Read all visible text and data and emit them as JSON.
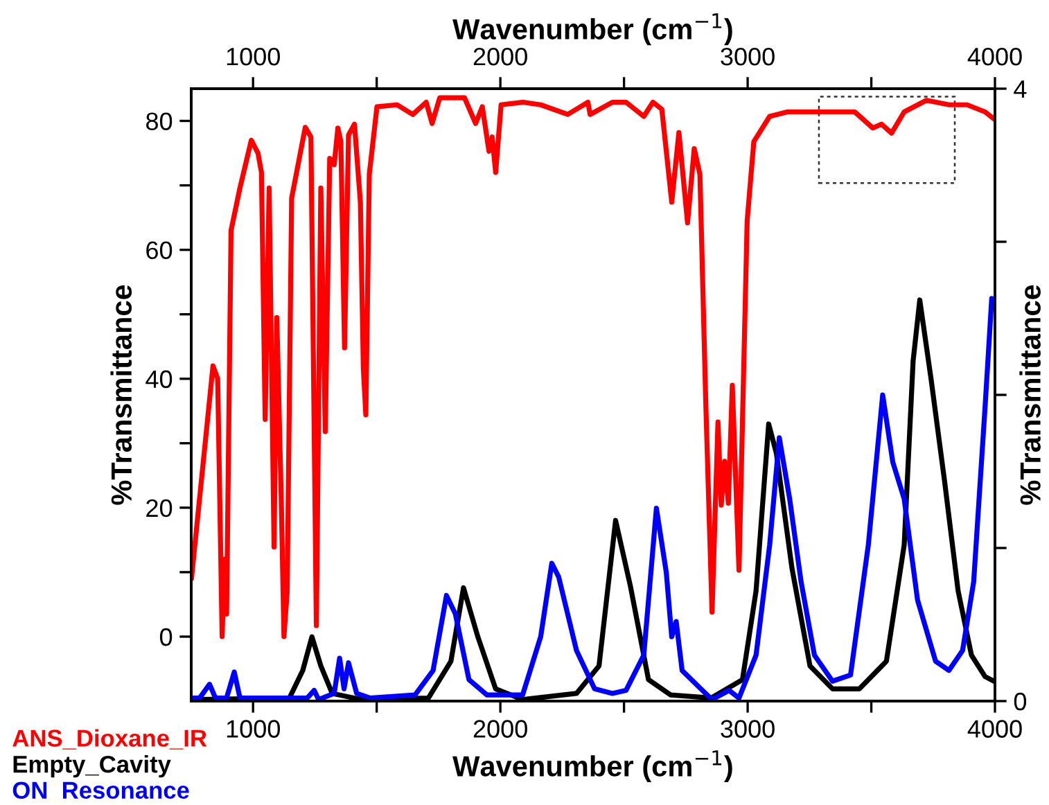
{
  "chart_data": {
    "type": "line",
    "xlabel": "Wavenumber (cm$^{−1}$)",
    "x2label": "Wavenumber (cm$^{−1}$)",
    "ylabel": "%Transmittance",
    "y2label": "%Transmittance",
    "xlim": [
      750,
      4000
    ],
    "xticks": [
      1000,
      {
        "value": 1500,
        "label": null
      },
      2000,
      {
        "value": 2500,
        "label": null
      },
      3000,
      {
        "value": 3500,
        "label": null
      },
      4000
    ],
    "x2lim": [
      750,
      4000
    ],
    "x2ticks": [
      1000,
      {
        "value": 1500,
        "label": null
      },
      2000,
      {
        "value": 2500,
        "label": null
      },
      3000,
      {
        "value": 3500,
        "label": null
      },
      4000
    ],
    "ylim": [
      -10,
      85
    ],
    "yticks": [
      0,
      {
        "value": 10,
        "label": null
      },
      20,
      {
        "value": 30,
        "label": null
      },
      40,
      {
        "value": 50,
        "label": null
      },
      60,
      {
        "value": 70,
        "label": null
      },
      80
    ],
    "y2lim": [
      0,
      4
    ],
    "y2ticks": [
      0,
      {
        "value": 1,
        "label": null
      },
      {
        "value": 2,
        "label": null
      },
      {
        "value": 3,
        "label": null
      },
      4
    ],
    "grid": false,
    "legend": "bottom left",
    "marker": "none",
    "line_style": "solid",
    "series": [
      {
        "name": "ANS_Dioxane_IR",
        "color": "#ff0000",
        "axis": "y",
        "x": [
          751,
          838,
          857,
          875,
          884,
          893,
          911,
          947,
          993,
          1020,
          1034,
          1049,
          1065,
          1085,
          1096,
          1114,
          1125,
          1138,
          1156,
          1211,
          1234,
          1256,
          1274,
          1292,
          1310,
          1328,
          1343,
          1355,
          1370,
          1386,
          1410,
          1434,
          1446,
          1456,
          1470,
          1501,
          1582,
          1646,
          1700,
          1724,
          1755,
          1855,
          1900,
          1927,
          1954,
          1967,
          1981,
          2003,
          2090,
          2163,
          2272,
          2354,
          2363,
          2453,
          2508,
          2580,
          2617,
          2653,
          2693,
          2722,
          2757,
          2784,
          2807,
          2831,
          2856,
          2880,
          2893,
          2907,
          2922,
          2938,
          2965,
          2998,
          3025,
          3089,
          3161,
          3306,
          3433,
          3506,
          3541,
          3582,
          3633,
          3723,
          3814,
          3887,
          3960,
          3996
        ],
        "values": [
          9,
          42,
          40,
          0,
          12,
          3.5,
          63,
          69.6,
          77,
          75,
          72,
          33.7,
          69.6,
          13.9,
          49.5,
          21.4,
          0,
          7,
          68,
          79,
          77.5,
          1.7,
          69.6,
          31.8,
          74.2,
          73.2,
          78.9,
          76.8,
          44.8,
          77.8,
          79.5,
          67.4,
          41.6,
          34.4,
          71.7,
          82.2,
          82.5,
          81,
          82.9,
          79.6,
          83.6,
          83.6,
          79.6,
          82.2,
          75.3,
          77.5,
          72,
          82.5,
          82.9,
          82.5,
          81,
          82.9,
          81,
          82.9,
          82.9,
          80.7,
          82.9,
          81.8,
          67.4,
          78.2,
          64.2,
          75.7,
          71.7,
          35.8,
          3.8,
          33.3,
          20.4,
          27.2,
          20.7,
          39,
          10.3,
          64.5,
          76.8,
          80.7,
          81.4,
          81.4,
          81.4,
          78.9,
          79.5,
          78.1,
          81.4,
          83.2,
          82.5,
          82.5,
          81.4,
          80.3
        ]
      },
      {
        "name": "Empty_Cavity",
        "color": "#000000",
        "axis": "y2",
        "x": [
          751,
          1147,
          1201,
          1238,
          1274,
          1320,
          1437,
          1709,
          1800,
          1851,
          1909,
          1981,
          2090,
          2308,
          2399,
          2466,
          2526,
          2599,
          2689,
          2852,
          2979,
          3034,
          3085,
          3116,
          3179,
          3252,
          3343,
          3452,
          3561,
          3633,
          3669,
          3696,
          3742,
          3796,
          3851,
          3905,
          3960,
          3996
        ],
        "values": [
          0.01,
          0.02,
          0.2,
          0.42,
          0.23,
          0.05,
          0.01,
          0.02,
          0.26,
          0.74,
          0.42,
          0.08,
          0.01,
          0.05,
          0.23,
          1.18,
          0.75,
          0.14,
          0.04,
          0.02,
          0.14,
          0.72,
          1.81,
          1.62,
          0.87,
          0.23,
          0.08,
          0.08,
          0.26,
          1.02,
          2.22,
          2.62,
          2.1,
          1.44,
          0.72,
          0.3,
          0.16,
          0.13
        ]
      },
      {
        "name": "ON  Resonance",
        "color": "#0000ff",
        "axis": "y2",
        "x": [
          751,
          784,
          824,
          848,
          893,
          924,
          947,
          1219,
          1247,
          1265,
          1328,
          1350,
          1368,
          1386,
          1419,
          1474,
          1655,
          1728,
          1782,
          1818,
          1873,
          1946,
          2090,
          2163,
          2208,
          2236,
          2308,
          2381,
          2453,
          2508,
          2580,
          2631,
          2671,
          2693,
          2711,
          2735,
          2817,
          2856,
          2925,
          2965,
          3034,
          3089,
          3128,
          3170,
          3216,
          3270,
          3343,
          3416,
          3488,
          3546,
          3587,
          3633,
          3687,
          3760,
          3814,
          3869,
          3914,
          3960,
          3987,
          3999
        ],
        "values": [
          0.02,
          0.02,
          0.11,
          0.02,
          0.02,
          0.19,
          0.02,
          0.02,
          0.07,
          0.01,
          0.05,
          0.28,
          0.08,
          0.25,
          0.05,
          0.02,
          0.04,
          0.2,
          0.69,
          0.57,
          0.14,
          0.04,
          0.04,
          0.42,
          0.9,
          0.81,
          0.33,
          0.08,
          0.05,
          0.07,
          0.3,
          1.26,
          0.84,
          0.42,
          0.52,
          0.2,
          0.07,
          0.01,
          0.07,
          0.02,
          0.3,
          1.02,
          1.72,
          1.32,
          0.78,
          0.3,
          0.13,
          0.17,
          1.02,
          2.0,
          1.56,
          1.32,
          0.66,
          0.26,
          0.2,
          0.33,
          0.78,
          1.92,
          2.63,
          2.61
        ]
      }
    ]
  }
}
